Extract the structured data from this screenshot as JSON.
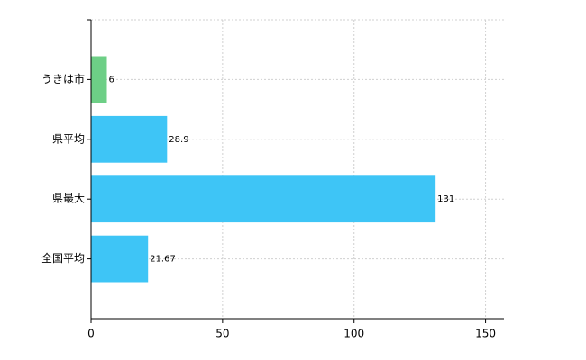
{
  "chart_data": {
    "type": "bar",
    "orientation": "horizontal",
    "categories": [
      "うきは市",
      "県平均",
      "県最大",
      "全国平均"
    ],
    "values": [
      6,
      28.9,
      131,
      21.67
    ],
    "colors": [
      "#6dcf86",
      "#3ec5f6",
      "#3ec5f6",
      "#3ec5f6"
    ],
    "xlim": [
      0,
      157
    ],
    "xticks": [
      0,
      50,
      100,
      150
    ],
    "grid": true
  }
}
